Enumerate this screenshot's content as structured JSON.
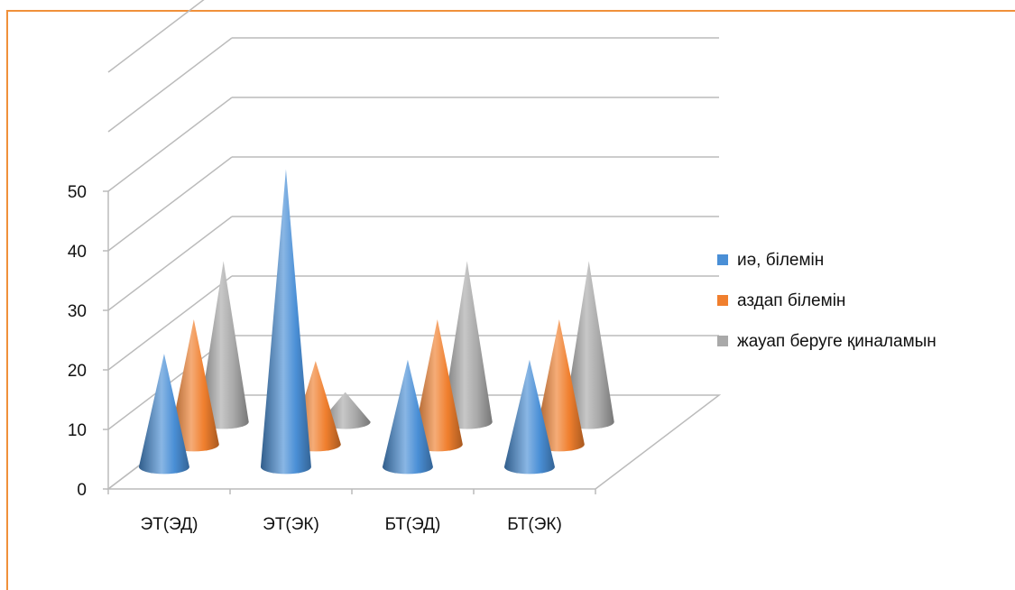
{
  "chart_data": {
    "type": "bar",
    "style": "3d-cone",
    "categories": [
      "ЭТ(ЭД)",
      "ЭТ(ЭК)",
      "БТ(ЭД)",
      "БТ(ЭК)"
    ],
    "series": [
      {
        "name": "иә, білемін",
        "color": "#4A8FD6",
        "values": [
          19,
          50,
          18,
          18
        ]
      },
      {
        "name": "аздап білемін",
        "color": "#F07F2E",
        "values": [
          21,
          14,
          21,
          21
        ]
      },
      {
        "name": "жауап беруге қиналамын",
        "color": "#A9A9A9",
        "values": [
          27,
          5,
          27,
          27
        ]
      }
    ],
    "yticks": [
      "0",
      "10",
      "20",
      "30",
      "40",
      "50"
    ],
    "ylim": [
      0,
      50
    ],
    "gridlines": true,
    "legend_position": "right"
  }
}
